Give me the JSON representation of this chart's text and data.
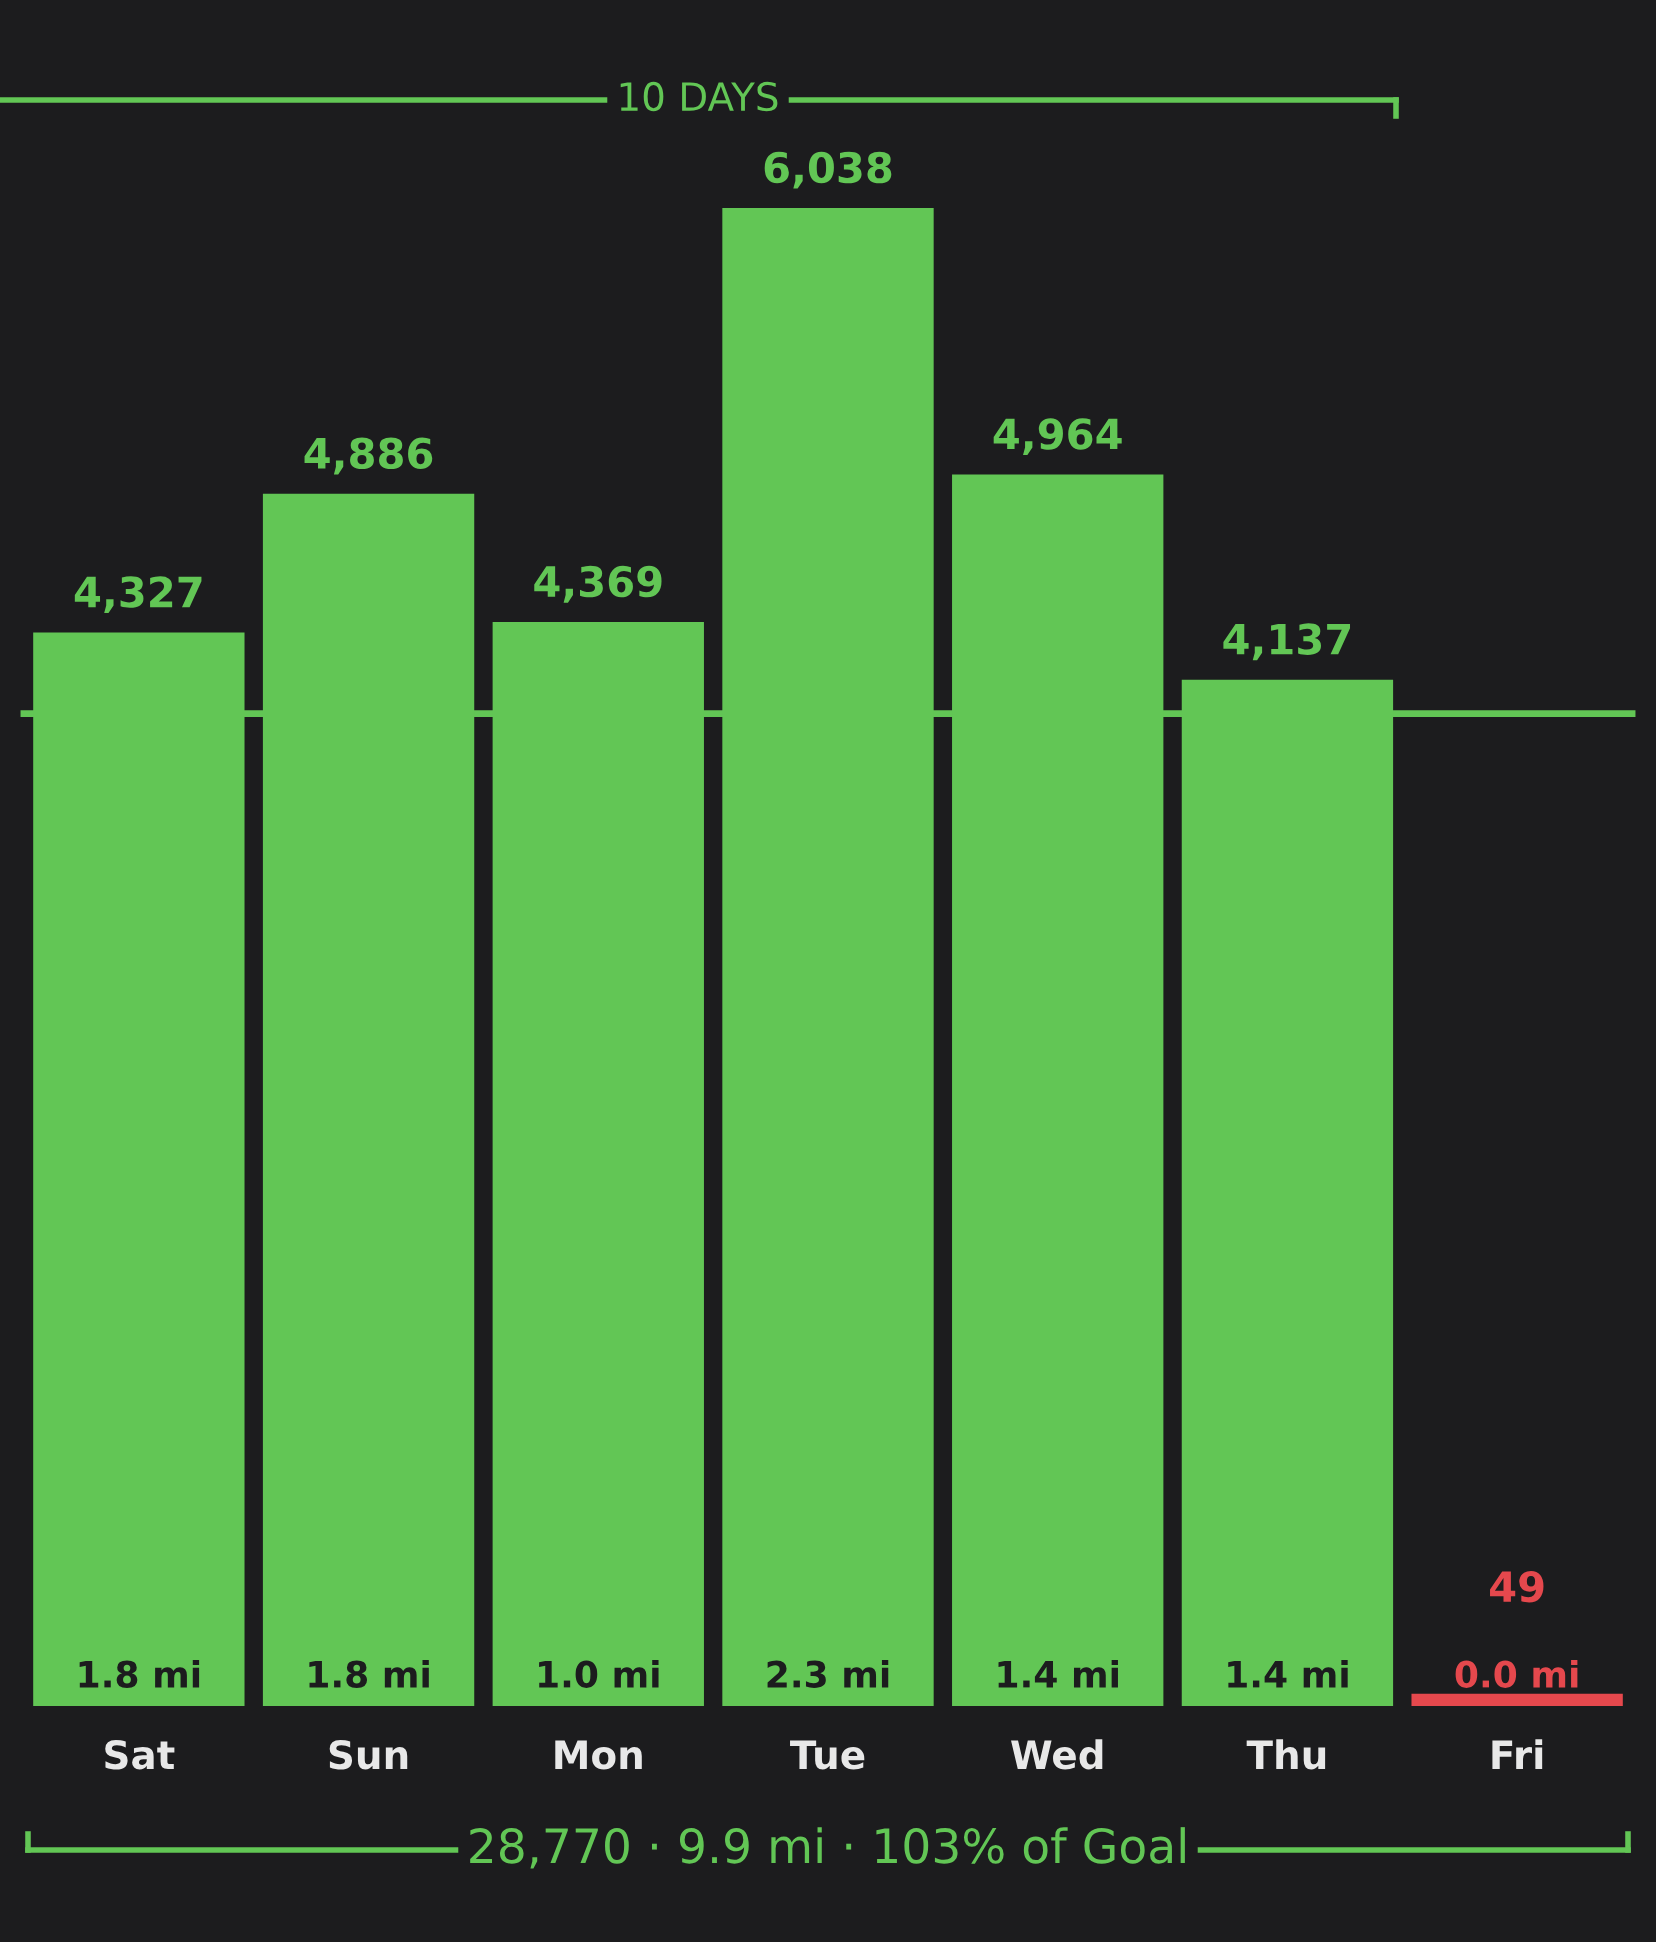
{
  "chart_data": {
    "type": "bar",
    "categories": [
      "Sat",
      "Sun",
      "Mon",
      "Tue",
      "Wed",
      "Thu",
      "Fri"
    ],
    "values": [
      4327,
      4886,
      4369,
      6038,
      4964,
      4137,
      49
    ],
    "colors": [
      "#62c655",
      "#62c655",
      "#62c655",
      "#62c655",
      "#62c655",
      "#62c655",
      "#e5484d"
    ],
    "value_labels": [
      "4,327",
      "4,886",
      "4,369",
      "6,038",
      "4,964",
      "4,137",
      "49"
    ],
    "ref_lines": [
      {
        "axis": "y",
        "value": 4000,
        "color": "#62c655"
      }
    ],
    "annotations": [
      {
        "text": "1.8 mi",
        "x": "Sat",
        "y": 0
      },
      {
        "text": "1.8 mi",
        "x": "Sun",
        "y": 0
      },
      {
        "text": "1.0 mi",
        "x": "Mon",
        "y": 0
      },
      {
        "text": "2.3 mi",
        "x": "Tue",
        "y": 0
      },
      {
        "text": "1.4 mi",
        "x": "Wed",
        "y": 0
      },
      {
        "text": "1.4 mi",
        "x": "Thu",
        "y": 0
      },
      {
        "text": "0.0 mi",
        "x": "Fri",
        "y": 0
      },
      "10 DAYS",
      "28,770 · 9.9 mi · 103% of Goal"
    ],
    "grid": false,
    "legend": false
  }
}
